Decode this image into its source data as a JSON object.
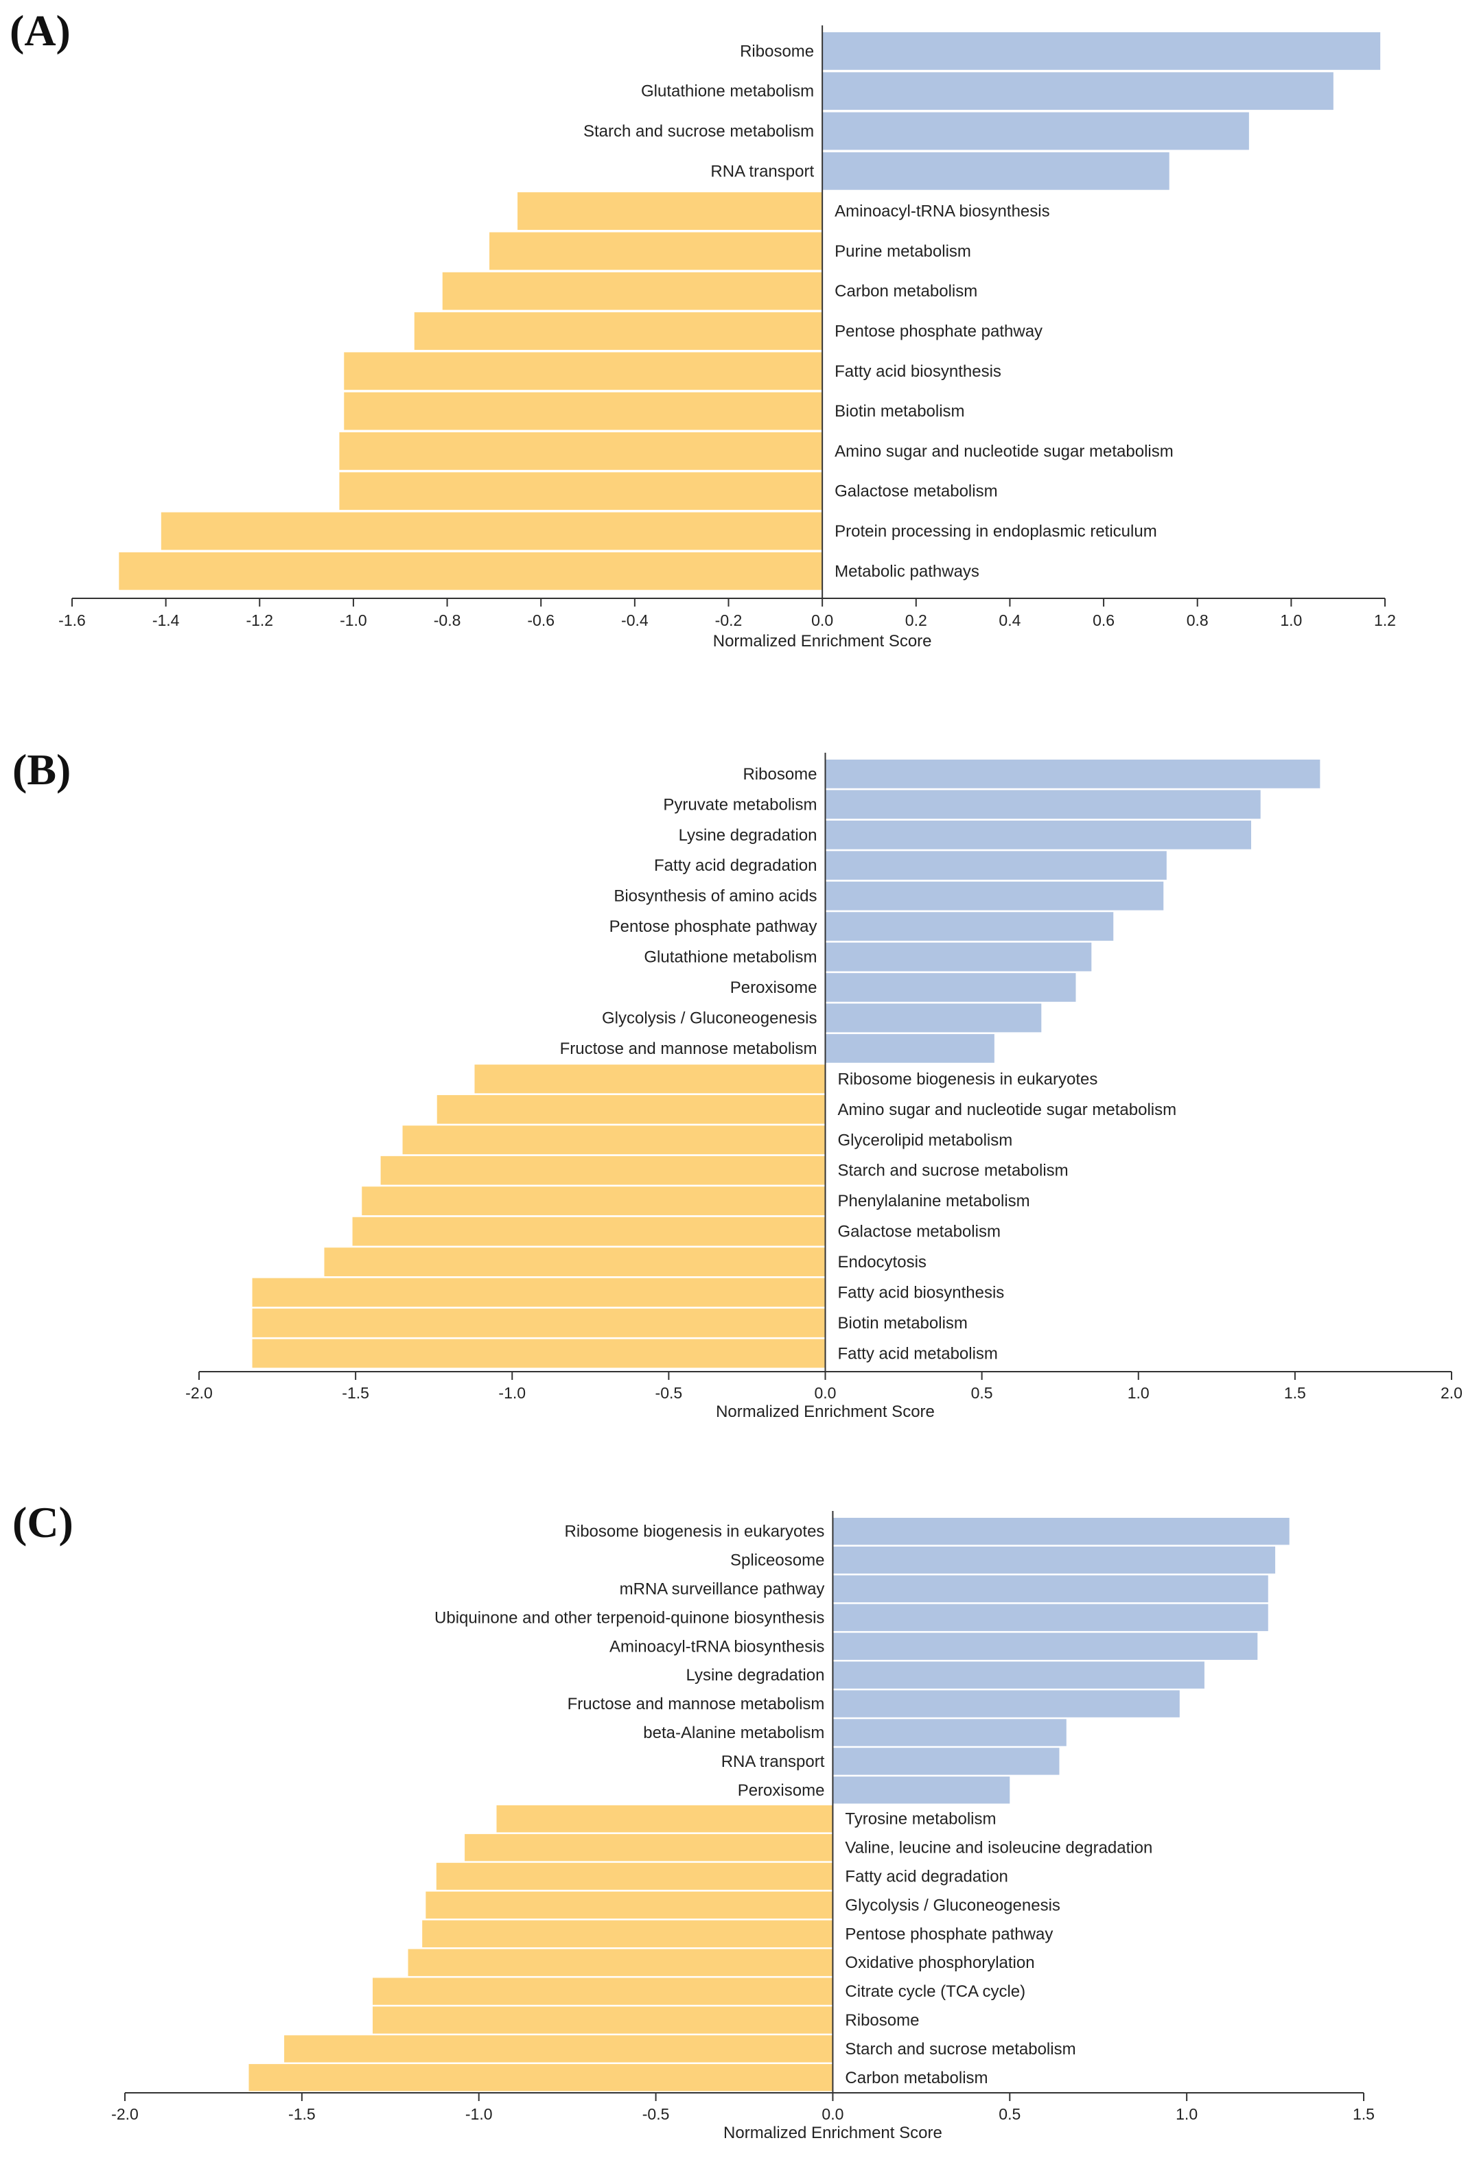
{
  "colors": {
    "positive": "#b0c4e2",
    "negative": "#fdd27b",
    "axis": "#333333"
  },
  "panels": [
    {
      "label": "(A)"
    },
    {
      "label": "(B)"
    },
    {
      "label": "(C)"
    }
  ],
  "chart_data": [
    {
      "type": "bar",
      "orientation": "horizontal",
      "panel": "(A)",
      "xlabel": "Normalized Enrichment Score",
      "xlim": [
        -1.6,
        1.2
      ],
      "xticks": [
        -1.6,
        -1.4,
        -1.2,
        -1.0,
        -0.8,
        -0.6,
        -0.4,
        -0.2,
        0.0,
        0.2,
        0.4,
        0.6,
        0.8,
        1.0,
        1.2
      ],
      "xtick_labels": [
        "-1.6",
        "-1.4",
        "-1.2",
        "-1.0",
        "-0.8",
        "-0.6",
        "-0.4",
        "-0.2",
        "0.0",
        "0.2",
        "0.4",
        "0.6",
        "0.8",
        "1.0",
        "1.2"
      ],
      "categories": [
        "Ribosome",
        "Glutathione metabolism",
        "Starch and sucrose metabolism",
        "RNA transport",
        "Aminoacyl-tRNA biosynthesis",
        "Purine metabolism",
        "Carbon metabolism",
        "Pentose phosphate pathway",
        "Fatty acid biosynthesis",
        "Biotin metabolism",
        "Amino sugar and nucleotide sugar metabolism",
        "Galactose metabolism",
        "Protein processing in endoplasmic reticulum",
        "Metabolic pathways"
      ],
      "values": [
        1.19,
        1.09,
        0.91,
        0.74,
        -0.65,
        -0.71,
        -0.81,
        -0.87,
        -1.02,
        -1.02,
        -1.03,
        -1.03,
        -1.41,
        -1.5
      ]
    },
    {
      "type": "bar",
      "orientation": "horizontal",
      "panel": "(B)",
      "xlabel": "Normalized Enrichment Score",
      "xlim": [
        -2.0,
        2.0
      ],
      "xticks": [
        -2.0,
        -1.5,
        -1.0,
        -0.5,
        0.0,
        0.5,
        1.0,
        1.5,
        2.0
      ],
      "xtick_labels": [
        "-2.0",
        "-1.5",
        "-1.0",
        "-0.5",
        "0.0",
        "0.5",
        "1.0",
        "1.5",
        "2.0"
      ],
      "categories": [
        "Ribosome",
        "Pyruvate metabolism",
        "Lysine degradation",
        "Fatty acid degradation",
        "Biosynthesis of amino acids",
        "Pentose phosphate pathway",
        "Glutathione metabolism",
        "Peroxisome",
        "Glycolysis / Gluconeogenesis",
        "Fructose and mannose metabolism",
        "Ribosome biogenesis in eukaryotes",
        "Amino sugar and nucleotide sugar metabolism",
        "Glycerolipid metabolism",
        "Starch and sucrose metabolism",
        "Phenylalanine metabolism",
        "Galactose metabolism",
        "Endocytosis",
        "Fatty acid biosynthesis",
        "Biotin metabolism",
        "Fatty acid metabolism"
      ],
      "values": [
        1.58,
        1.39,
        1.36,
        1.09,
        1.08,
        0.92,
        0.85,
        0.8,
        0.69,
        0.54,
        -1.12,
        -1.24,
        -1.35,
        -1.42,
        -1.48,
        -1.51,
        -1.6,
        -1.83,
        -1.83,
        -1.83
      ]
    },
    {
      "type": "bar",
      "orientation": "horizontal",
      "panel": "(C)",
      "xlabel": "Normalized Enrichment Score",
      "xlim": [
        -2.0,
        1.5
      ],
      "xticks": [
        -2.0,
        -1.5,
        -1.0,
        -0.5,
        0.0,
        0.5,
        1.0,
        1.5
      ],
      "xtick_labels": [
        "-2.0",
        "-1.5",
        "-1.0",
        "-0.5",
        "0.0",
        "0.5",
        "1.0",
        "1.5"
      ],
      "categories": [
        "Ribosome biogenesis in eukaryotes",
        "Spliceosome",
        "mRNA surveillance pathway",
        "Ubiquinone and other terpenoid-quinone biosynthesis",
        "Aminoacyl-tRNA biosynthesis",
        "Lysine degradation",
        "Fructose and mannose metabolism",
        "beta-Alanine metabolism",
        "RNA transport",
        "Peroxisome",
        "Tyrosine metabolism",
        "Valine, leucine and isoleucine degradation",
        "Fatty acid degradation",
        "Glycolysis / Gluconeogenesis",
        "Pentose phosphate pathway",
        "Oxidative phosphorylation",
        "Citrate cycle (TCA cycle)",
        "Ribosome",
        "Starch and sucrose metabolism",
        "Carbon metabolism"
      ],
      "values": [
        1.29,
        1.25,
        1.23,
        1.23,
        1.2,
        1.05,
        0.98,
        0.66,
        0.64,
        0.5,
        -0.95,
        -1.04,
        -1.12,
        -1.15,
        -1.16,
        -1.2,
        -1.3,
        -1.3,
        -1.55,
        -1.65
      ]
    }
  ]
}
